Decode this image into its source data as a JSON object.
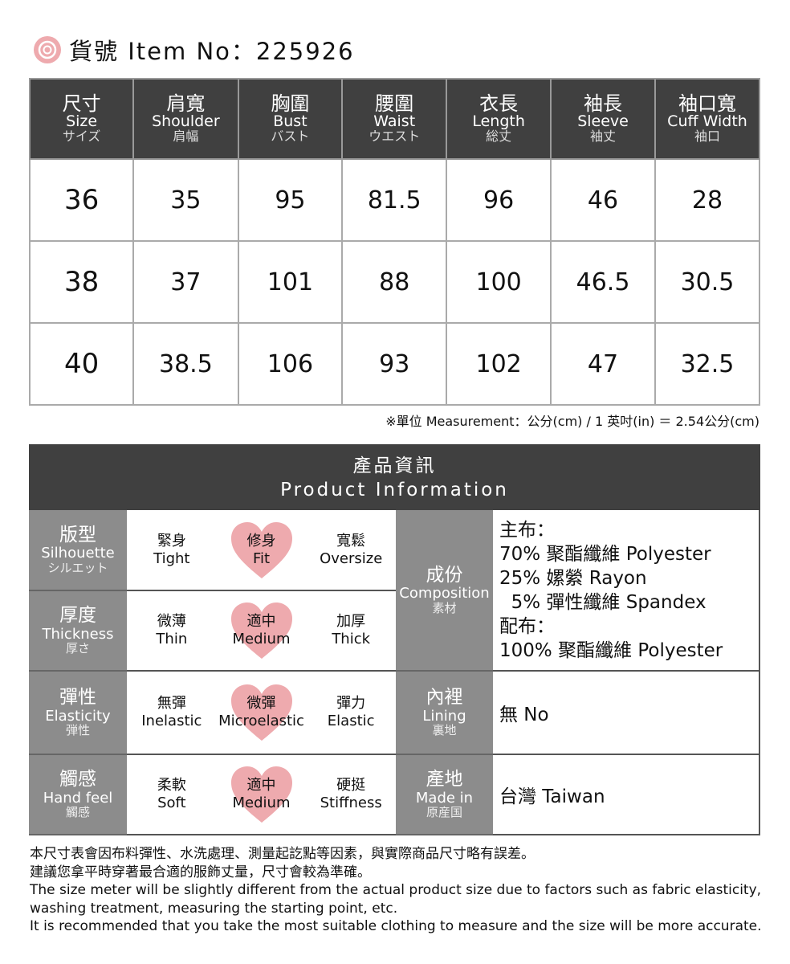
{
  "title": {
    "icon": "rose-icon",
    "text": "貨號 Item No：225926"
  },
  "size_table": {
    "headers": [
      {
        "zh": "尺寸",
        "en": "Size",
        "jp": "サイズ"
      },
      {
        "zh": "肩寬",
        "en": "Shoulder",
        "jp": "肩幅"
      },
      {
        "zh": "胸圍",
        "en": "Bust",
        "jp": "バスト"
      },
      {
        "zh": "腰圍",
        "en": "Waist",
        "jp": "ウエスト"
      },
      {
        "zh": "衣長",
        "en": "Length",
        "jp": "総丈"
      },
      {
        "zh": "袖長",
        "en": "Sleeve",
        "jp": "袖丈"
      },
      {
        "zh": "袖口寬",
        "en": "Cuff Width",
        "jp": "袖口"
      }
    ],
    "rows": [
      [
        "36",
        "35",
        "95",
        "81.5",
        "96",
        "46",
        "28"
      ],
      [
        "38",
        "37",
        "101",
        "88",
        "100",
        "46.5",
        "30.5"
      ],
      [
        "40",
        "38.5",
        "106",
        "93",
        "102",
        "47",
        "32.5"
      ]
    ]
  },
  "note": "※單位 Measurement：公分(cm) / 1 英吋(in) ＝ 2.54公分(cm)",
  "info": {
    "title_zh": "產品資訊",
    "title_en": "Product Information",
    "selected_color": "#eeaaae",
    "attributes": [
      {
        "zh": "版型",
        "en": "Silhouette",
        "jp": "シルエット",
        "options": [
          {
            "zh": "緊身",
            "en": "Tight"
          },
          {
            "zh": "修身",
            "en": "Fit"
          },
          {
            "zh": "寬鬆",
            "en": "Oversize"
          }
        ],
        "selected": 1
      },
      {
        "zh": "厚度",
        "en": "Thickness",
        "jp": "厚さ",
        "options": [
          {
            "zh": "微薄",
            "en": "Thin"
          },
          {
            "zh": "適中",
            "en": "Medium"
          },
          {
            "zh": "加厚",
            "en": "Thick"
          }
        ],
        "selected": 1
      },
      {
        "zh": "彈性",
        "en": "Elasticity",
        "jp": "弾性",
        "options": [
          {
            "zh": "無彈",
            "en": "Inelastic"
          },
          {
            "zh": "微彈",
            "en": "Microelastic"
          },
          {
            "zh": "彈力",
            "en": "Elastic"
          }
        ],
        "selected": 1
      },
      {
        "zh": "觸感",
        "en": "Hand feel",
        "jp": "觸感",
        "options": [
          {
            "zh": "柔軟",
            "en": "Soft"
          },
          {
            "zh": "適中",
            "en": "Medium"
          },
          {
            "zh": "硬挺",
            "en": "Stiffness"
          }
        ],
        "selected": 1
      }
    ],
    "composition": {
      "zh": "成份",
      "en": "Composition",
      "jp": "素材",
      "lines": [
        "主布：",
        "70% 聚酯纖維 Polyester",
        "25% 嫘縈 Rayon",
        "  5% 彈性纖維 Spandex",
        "配布：",
        "100% 聚酯纖維 Polyester"
      ]
    },
    "lining": {
      "zh": "內裡",
      "en": "Lining",
      "jp": "裏地",
      "value": "無 No"
    },
    "origin": {
      "zh": "產地",
      "en": "Made in",
      "jp": "原産国",
      "value": "台灣 Taiwan"
    }
  },
  "footer": [
    "本尺寸表會因布料彈性、水洗處理、測量起訖點等因素，與實際商品尺寸略有誤差。",
    "建議您拿平時穿著最合適的服飾丈量，尺寸會較為準確。",
    "The size meter will be slightly different from the actual product size due to factors such as fabric elasticity,",
    "washing treatment, measuring the starting point, etc.",
    "It is recommended that you take the most suitable clothing to measure and the size will be more accurate."
  ]
}
